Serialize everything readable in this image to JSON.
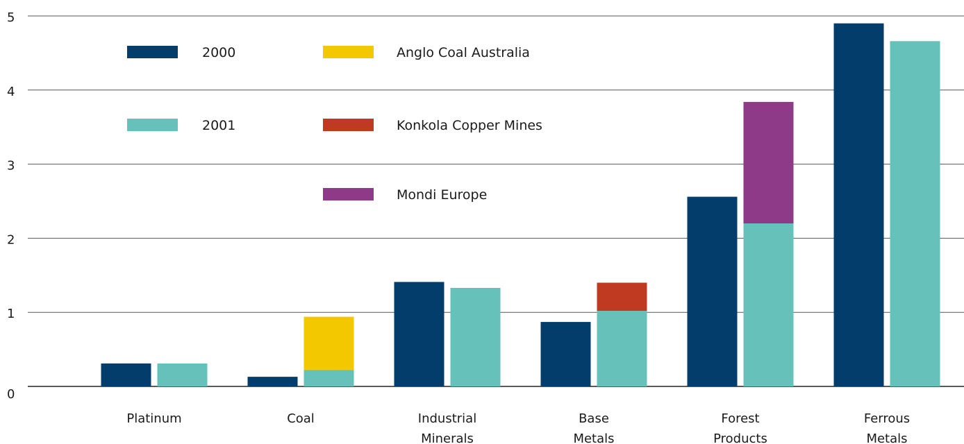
{
  "chart_data": {
    "type": "bar",
    "title": "",
    "xlabel": "",
    "ylabel": "",
    "ylim": [
      0,
      5
    ],
    "yticks": [
      "0",
      "1",
      "2",
      "3",
      "4",
      "5"
    ],
    "grid": true,
    "categories": [
      [
        "Platinum"
      ],
      [
        "Coal"
      ],
      [
        "Industrial",
        "Minerals"
      ],
      [
        "Base",
        "Metals"
      ],
      [
        "Forest",
        "Products"
      ],
      [
        "Ferrous",
        "Metals"
      ]
    ],
    "series": [
      {
        "name": "2000",
        "color": "#023d6b",
        "values": [
          0.31,
          0.13,
          1.41,
          0.87,
          2.56,
          4.9
        ]
      },
      {
        "name": "2001",
        "color": "#66c1ba",
        "values": [
          0.31,
          0.22,
          1.33,
          1.02,
          2.2,
          4.66
        ]
      }
    ],
    "stacked_on_2001": [
      {
        "name": "Anglo Coal Australia",
        "color": "#f4c800",
        "category_index": 1,
        "value": 0.72
      },
      {
        "name": "Konkola Copper Mines",
        "color": "#c03a21",
        "category_index": 3,
        "value": 0.38
      },
      {
        "name": "Mondi Europe",
        "color": "#8e3a88",
        "category_index": 4,
        "value": 1.64
      }
    ],
    "legend": {
      "placement": "top-left",
      "entries": [
        {
          "label": "2000",
          "color": "#023d6b"
        },
        {
          "label": "2001",
          "color": "#66c1ba"
        },
        {
          "label": "Anglo Coal Australia",
          "color": "#f4c800"
        },
        {
          "label": "Konkola Copper Mines",
          "color": "#c03a21"
        },
        {
          "label": "Mondi Europe",
          "color": "#8e3a88"
        }
      ]
    }
  }
}
